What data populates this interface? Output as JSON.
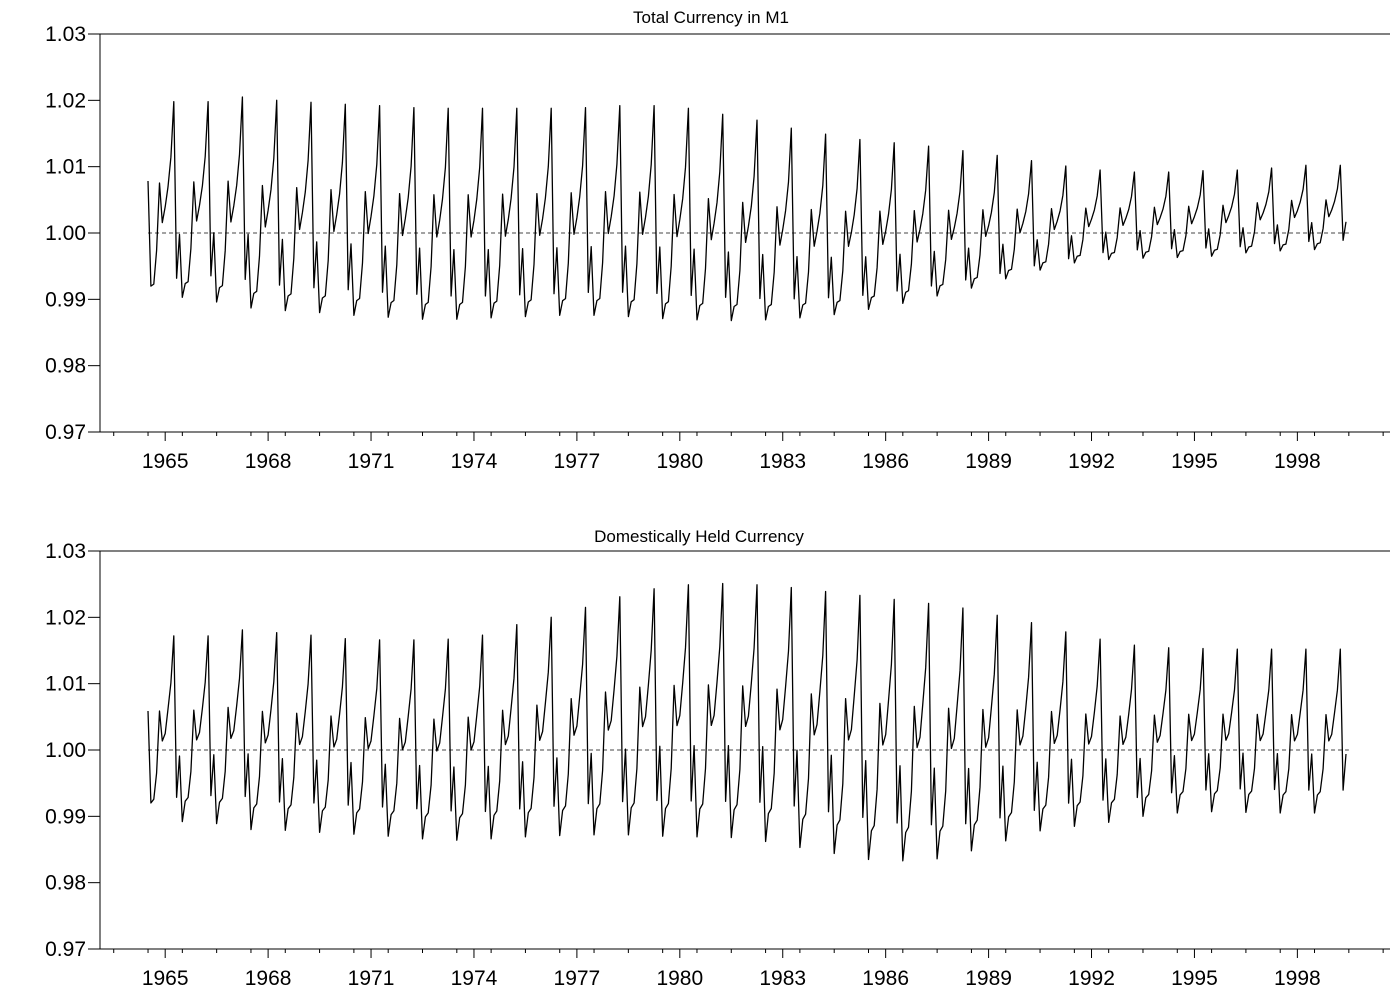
{
  "chart_data": [
    {
      "type": "line",
      "title": "Total Currency in M1",
      "xlabel": "",
      "ylabel": "",
      "ylim": [
        0.97,
        1.03
      ],
      "yticks": [
        "0.97",
        "0.98",
        "0.99",
        "1.00",
        "1.01",
        "1.02",
        "1.03"
      ],
      "xlim": [
        1963.6,
        2001.2
      ],
      "xticks": [
        "1965",
        "1968",
        "1971",
        "1974",
        "1977",
        "1980",
        "1983",
        "1986",
        "1989",
        "1992",
        "1995",
        "1998"
      ],
      "reference_line": 1.0,
      "grid": false,
      "start": 1965.0,
      "frequency": "monthly",
      "years": [
        1965,
        1966,
        1967,
        1968,
        1969,
        1970,
        1971,
        1972,
        1973,
        1974,
        1975,
        1976,
        1977,
        1978,
        1979,
        1980,
        1981,
        1982,
        1983,
        1984,
        1985,
        1986,
        1987,
        1988,
        1989,
        1990,
        1991,
        1992,
        1993,
        1994,
        1995,
        1996,
        1997,
        1998,
        1999
      ],
      "month_pattern": [
        -1.0,
        -0.86,
        -0.84,
        -0.5,
        0.18,
        -0.22,
        -0.06,
        0.14,
        0.44,
        1.0,
        -0.78,
        -0.34
      ],
      "trough": [
        0.9899,
        0.9903,
        0.9896,
        0.9887,
        0.9883,
        0.988,
        0.9876,
        0.9873,
        0.987,
        0.987,
        0.9872,
        0.9874,
        0.9876,
        0.9876,
        0.9874,
        0.9871,
        0.9869,
        0.9868,
        0.9869,
        0.9872,
        0.9877,
        0.9885,
        0.9894,
        0.9905,
        0.9917,
        0.9931,
        0.9944,
        0.9955,
        0.996,
        0.9962,
        0.9963,
        0.9965,
        0.997,
        0.9973,
        0.9975
      ],
      "peak": [
        1.0198,
        1.0198,
        1.0205,
        1.02,
        1.0197,
        1.0194,
        1.0192,
        1.0189,
        1.0188,
        1.0188,
        1.0188,
        1.0188,
        1.0189,
        1.0192,
        1.0192,
        1.0188,
        1.0179,
        1.017,
        1.0158,
        1.0149,
        1.0141,
        1.0136,
        1.0131,
        1.0124,
        1.0117,
        1.0109,
        1.0101,
        1.0095,
        1.0092,
        1.0092,
        1.0094,
        1.0095,
        1.0098,
        1.0102,
        1.0102
      ],
      "series": [
        {
          "values_rule": "centre = (peak + trough) / 2; amplitude = (peak - trough) / 2; value = centre + amplitude * month_pattern[month]"
        }
      ]
    },
    {
      "type": "line",
      "title": "Domestically Held Currency",
      "xlabel": "",
      "ylabel": "",
      "ylim": [
        0.97,
        1.03
      ],
      "yticks": [
        "0.97",
        "0.98",
        "0.99",
        "1.00",
        "1.01",
        "1.02",
        "1.03"
      ],
      "xlim": [
        1963.6,
        2001.2
      ],
      "xticks": [
        "1965",
        "1968",
        "1971",
        "1974",
        "1977",
        "1980",
        "1983",
        "1986",
        "1989",
        "1992",
        "1995",
        "1998"
      ],
      "reference_line": 1.0,
      "grid": false,
      "start": 1965.0,
      "frequency": "monthly",
      "years": [
        1965,
        1966,
        1967,
        1968,
        1969,
        1970,
        1971,
        1972,
        1973,
        1974,
        1975,
        1976,
        1977,
        1978,
        1979,
        1980,
        1981,
        1982,
        1983,
        1984,
        1985,
        1986,
        1987,
        1988,
        1989,
        1990,
        1991,
        1992,
        1993,
        1994,
        1995,
        1996,
        1997,
        1998,
        1999
      ],
      "month_pattern": [
        -1.0,
        -0.78,
        -0.74,
        -0.46,
        0.2,
        -0.12,
        -0.04,
        0.22,
        0.5,
        1.0,
        -0.72,
        -0.28
      ],
      "trough": [
        0.9889,
        0.9892,
        0.9889,
        0.988,
        0.9879,
        0.9876,
        0.9873,
        0.987,
        0.9866,
        0.9864,
        0.9866,
        0.9869,
        0.9871,
        0.9872,
        0.9872,
        0.987,
        0.9869,
        0.9868,
        0.9862,
        0.9853,
        0.9844,
        0.9835,
        0.9833,
        0.9836,
        0.9848,
        0.9863,
        0.9878,
        0.9885,
        0.9891,
        0.99,
        0.9905,
        0.9907,
        0.9906,
        0.9905,
        0.9905
      ],
      "peak": [
        1.0172,
        1.0172,
        1.0181,
        1.0177,
        1.0173,
        1.0168,
        1.0166,
        1.0166,
        1.0167,
        1.0173,
        1.0189,
        1.02,
        1.0215,
        1.0231,
        1.0243,
        1.0249,
        1.0251,
        1.0249,
        1.0245,
        1.0239,
        1.0233,
        1.0227,
        1.0221,
        1.0214,
        1.0203,
        1.0192,
        1.0178,
        1.0167,
        1.0158,
        1.0154,
        1.0153,
        1.0152,
        1.0152,
        1.0152,
        1.0152
      ],
      "series": [
        {
          "values_rule": "centre = (peak + trough) / 2; amplitude = (peak - trough) / 2; value = centre + amplitude * month_pattern[month]"
        }
      ]
    }
  ]
}
